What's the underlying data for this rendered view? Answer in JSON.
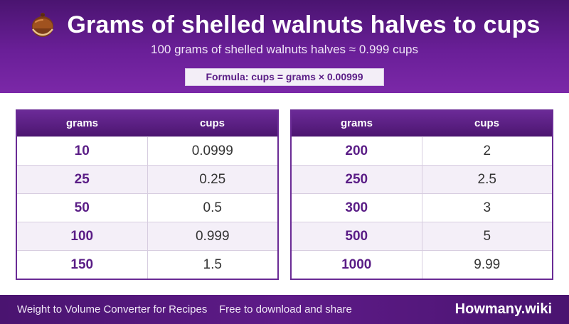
{
  "header": {
    "icon": "walnut-icon",
    "title": "Grams of shelled walnuts halves to cups",
    "subtitle": "100 grams of shelled walnuts halves ≈ 0.999 cups",
    "formula": "Formula: cups = grams × 0.00999"
  },
  "tables": {
    "left": {
      "col_grams": "grams",
      "col_cups": "cups",
      "rows": [
        {
          "grams": "10",
          "cups": "0.0999"
        },
        {
          "grams": "25",
          "cups": "0.25"
        },
        {
          "grams": "50",
          "cups": "0.5"
        },
        {
          "grams": "100",
          "cups": "0.999"
        },
        {
          "grams": "150",
          "cups": "1.5"
        }
      ]
    },
    "right": {
      "col_grams": "grams",
      "col_cups": "cups",
      "rows": [
        {
          "grams": "200",
          "cups": "2"
        },
        {
          "grams": "250",
          "cups": "2.5"
        },
        {
          "grams": "300",
          "cups": "3"
        },
        {
          "grams": "500",
          "cups": "5"
        },
        {
          "grams": "1000",
          "cups": "9.99"
        }
      ]
    }
  },
  "footer": {
    "left_text": "Weight to Volume Converter for Recipes",
    "middle_text": "Free to download and share",
    "brand": "Howmany.wiki"
  },
  "colors": {
    "header_bg": "#6a1f98",
    "accent": "#5a1d86",
    "row_alt": "#f4eff8"
  }
}
